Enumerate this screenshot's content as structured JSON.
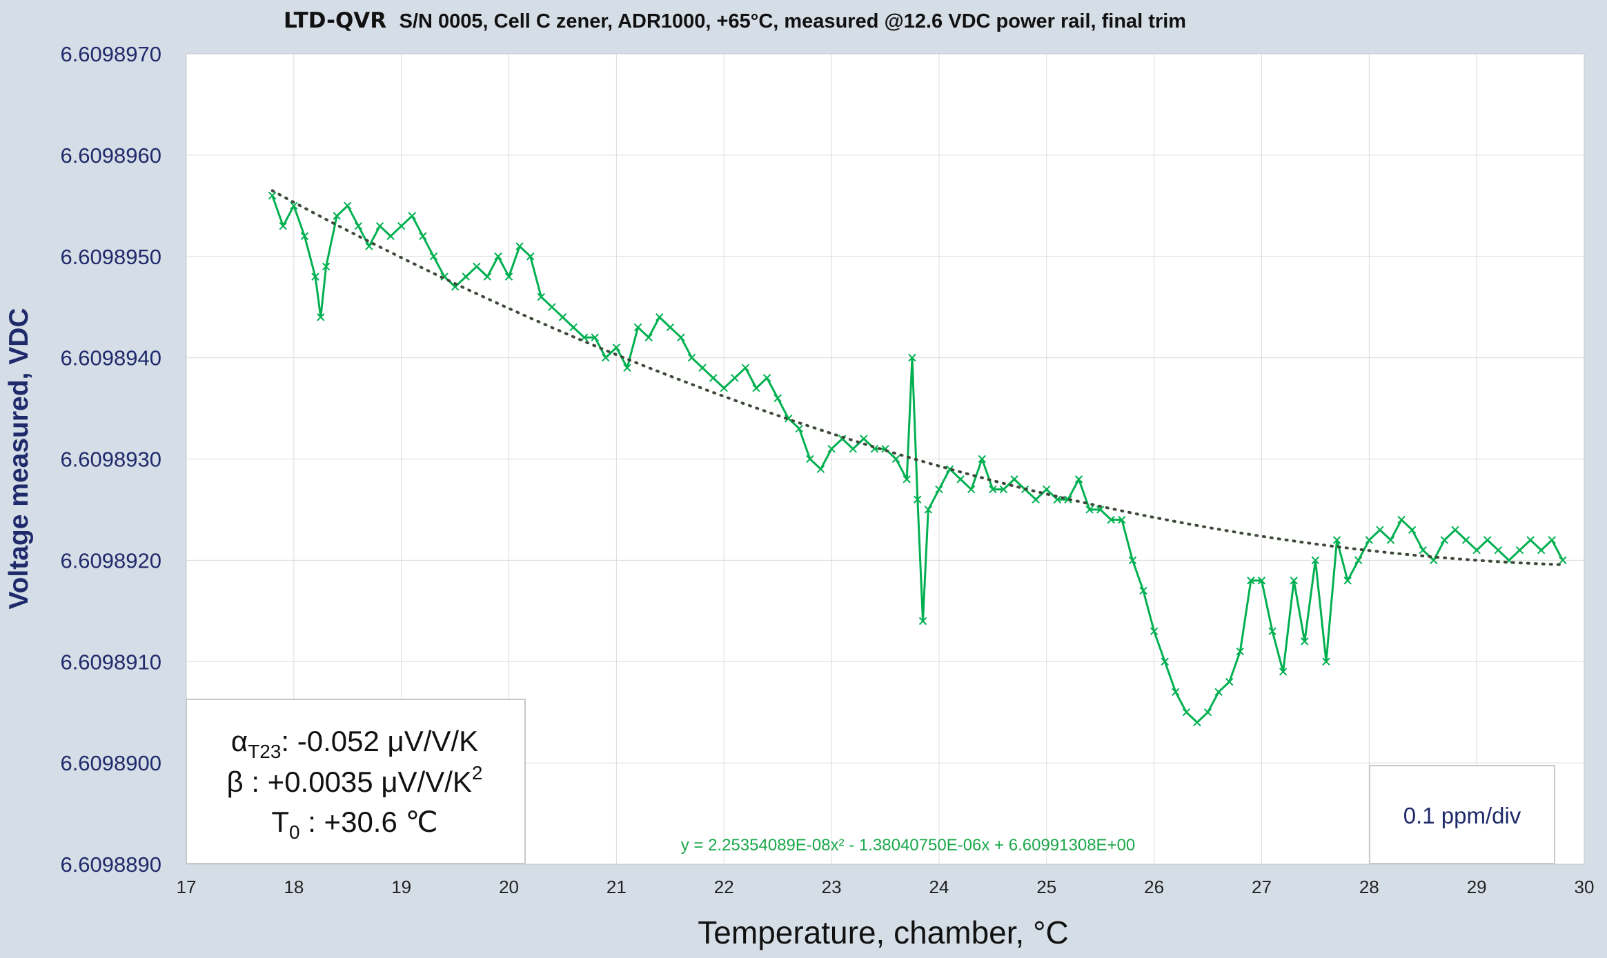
{
  "title": {
    "brand": "LTD-QVR",
    "text": "S/N 0005, Cell C zener, ADR1000, +65°C, measured @12.6 VDC power rail, final trim"
  },
  "colors": {
    "series": "#00b050",
    "trend": "#3d4a3a",
    "axis_text": "#1f2a6b",
    "grid": "#dcdcdc",
    "plot_bg": "#ffffff",
    "page_bg": "#d5dde6"
  },
  "chart_data": {
    "type": "scatter",
    "xlabel": "Temperature, chamber, °C",
    "ylabel": "Voltage measured, VDC",
    "xlim": [
      17,
      30
    ],
    "ylim": [
      6.609889,
      6.609897
    ],
    "x_ticks": [
      "17",
      "18",
      "19",
      "20",
      "21",
      "22",
      "23",
      "24",
      "25",
      "26",
      "27",
      "28",
      "29",
      "30"
    ],
    "y_ticks": [
      "6.6098890",
      "6.6098900",
      "6.6098910",
      "6.6098920",
      "6.6098930",
      "6.6098940",
      "6.6098950",
      "6.6098960",
      "6.6098970"
    ],
    "grid": true,
    "series": [
      {
        "marker": "x",
        "points": [
          [
            17.8,
            6.6098956
          ],
          [
            17.9,
            6.6098953
          ],
          [
            18.0,
            6.6098955
          ],
          [
            18.1,
            6.6098952
          ],
          [
            18.2,
            6.6098948
          ],
          [
            18.25,
            6.6098944
          ],
          [
            18.3,
            6.6098949
          ],
          [
            18.4,
            6.6098954
          ],
          [
            18.5,
            6.6098955
          ],
          [
            18.6,
            6.6098953
          ],
          [
            18.7,
            6.6098951
          ],
          [
            18.8,
            6.6098953
          ],
          [
            18.9,
            6.6098952
          ],
          [
            19.0,
            6.6098953
          ],
          [
            19.1,
            6.6098954
          ],
          [
            19.2,
            6.6098952
          ],
          [
            19.3,
            6.609895
          ],
          [
            19.4,
            6.6098948
          ],
          [
            19.5,
            6.6098947
          ],
          [
            19.6,
            6.6098948
          ],
          [
            19.7,
            6.6098949
          ],
          [
            19.8,
            6.6098948
          ],
          [
            19.9,
            6.609895
          ],
          [
            20.0,
            6.6098948
          ],
          [
            20.1,
            6.6098951
          ],
          [
            20.2,
            6.609895
          ],
          [
            20.3,
            6.6098946
          ],
          [
            20.4,
            6.6098945
          ],
          [
            20.5,
            6.6098944
          ],
          [
            20.6,
            6.6098943
          ],
          [
            20.7,
            6.6098942
          ],
          [
            20.8,
            6.6098942
          ],
          [
            20.9,
            6.609894
          ],
          [
            21.0,
            6.6098941
          ],
          [
            21.1,
            6.6098939
          ],
          [
            21.2,
            6.6098943
          ],
          [
            21.3,
            6.6098942
          ],
          [
            21.4,
            6.6098944
          ],
          [
            21.5,
            6.6098943
          ],
          [
            21.6,
            6.6098942
          ],
          [
            21.7,
            6.609894
          ],
          [
            21.8,
            6.6098939
          ],
          [
            21.9,
            6.6098938
          ],
          [
            22.0,
            6.6098937
          ],
          [
            22.1,
            6.6098938
          ],
          [
            22.2,
            6.6098939
          ],
          [
            22.3,
            6.6098937
          ],
          [
            22.4,
            6.6098938
          ],
          [
            22.5,
            6.6098936
          ],
          [
            22.6,
            6.6098934
          ],
          [
            22.7,
            6.6098933
          ],
          [
            22.8,
            6.609893
          ],
          [
            22.9,
            6.6098929
          ],
          [
            23.0,
            6.6098931
          ],
          [
            23.1,
            6.6098932
          ],
          [
            23.2,
            6.6098931
          ],
          [
            23.3,
            6.6098932
          ],
          [
            23.4,
            6.6098931
          ],
          [
            23.5,
            6.6098931
          ],
          [
            23.6,
            6.609893
          ],
          [
            23.7,
            6.6098928
          ],
          [
            23.75,
            6.609894
          ],
          [
            23.8,
            6.6098926
          ],
          [
            23.85,
            6.6098914
          ],
          [
            23.9,
            6.6098925
          ],
          [
            24.0,
            6.6098927
          ],
          [
            24.1,
            6.6098929
          ],
          [
            24.2,
            6.6098928
          ],
          [
            24.3,
            6.6098927
          ],
          [
            24.4,
            6.609893
          ],
          [
            24.5,
            6.6098927
          ],
          [
            24.6,
            6.6098927
          ],
          [
            24.7,
            6.6098928
          ],
          [
            24.8,
            6.6098927
          ],
          [
            24.9,
            6.6098926
          ],
          [
            25.0,
            6.6098927
          ],
          [
            25.1,
            6.6098926
          ],
          [
            25.2,
            6.6098926
          ],
          [
            25.3,
            6.6098928
          ],
          [
            25.4,
            6.6098925
          ],
          [
            25.5,
            6.6098925
          ],
          [
            25.6,
            6.6098924
          ],
          [
            25.7,
            6.6098924
          ],
          [
            25.8,
            6.609892
          ],
          [
            25.9,
            6.6098917
          ],
          [
            26.0,
            6.6098913
          ],
          [
            26.1,
            6.609891
          ],
          [
            26.2,
            6.6098907
          ],
          [
            26.3,
            6.6098905
          ],
          [
            26.4,
            6.6098904
          ],
          [
            26.5,
            6.6098905
          ],
          [
            26.6,
            6.6098907
          ],
          [
            26.7,
            6.6098908
          ],
          [
            26.8,
            6.6098911
          ],
          [
            26.9,
            6.6098918
          ],
          [
            27.0,
            6.6098918
          ],
          [
            27.1,
            6.6098913
          ],
          [
            27.2,
            6.6098909
          ],
          [
            27.3,
            6.6098918
          ],
          [
            27.4,
            6.6098912
          ],
          [
            27.5,
            6.609892
          ],
          [
            27.6,
            6.609891
          ],
          [
            27.7,
            6.6098922
          ],
          [
            27.8,
            6.6098918
          ],
          [
            27.9,
            6.609892
          ],
          [
            28.0,
            6.6098922
          ],
          [
            28.1,
            6.6098923
          ],
          [
            28.2,
            6.6098922
          ],
          [
            28.3,
            6.6098924
          ],
          [
            28.4,
            6.6098923
          ],
          [
            28.5,
            6.6098921
          ],
          [
            28.6,
            6.609892
          ],
          [
            28.7,
            6.6098922
          ],
          [
            28.8,
            6.6098923
          ],
          [
            28.9,
            6.6098922
          ],
          [
            29.0,
            6.6098921
          ],
          [
            29.1,
            6.6098922
          ],
          [
            29.2,
            6.6098921
          ],
          [
            29.3,
            6.609892
          ],
          [
            29.4,
            6.6098921
          ],
          [
            29.5,
            6.6098922
          ],
          [
            29.6,
            6.6098921
          ],
          [
            29.7,
            6.6098922
          ],
          [
            29.8,
            6.609892
          ]
        ]
      }
    ],
    "trendline": {
      "type": "polynomial-2",
      "coefficients": [
        2.25354089e-08,
        -1.3804075e-06,
        6.60991308
      ],
      "x_range": [
        17.8,
        29.8
      ],
      "equation_label": "y = 2.25354089E-08x² - 1.38040750E-06x + 6.60991308E+00"
    },
    "legend": "none"
  },
  "coef_box": {
    "alpha_symbol": "α",
    "alpha_sub": "T23",
    "alpha_value": ": -0.052  μV/V/K",
    "beta_text": "β : +0.0035 μV/V/K",
    "beta_sup": "2",
    "t0_symbol": "T",
    "t0_sub": "0",
    "t0_value": " : +30.6 ℃"
  },
  "scale_note": "0.1 ppm/div"
}
